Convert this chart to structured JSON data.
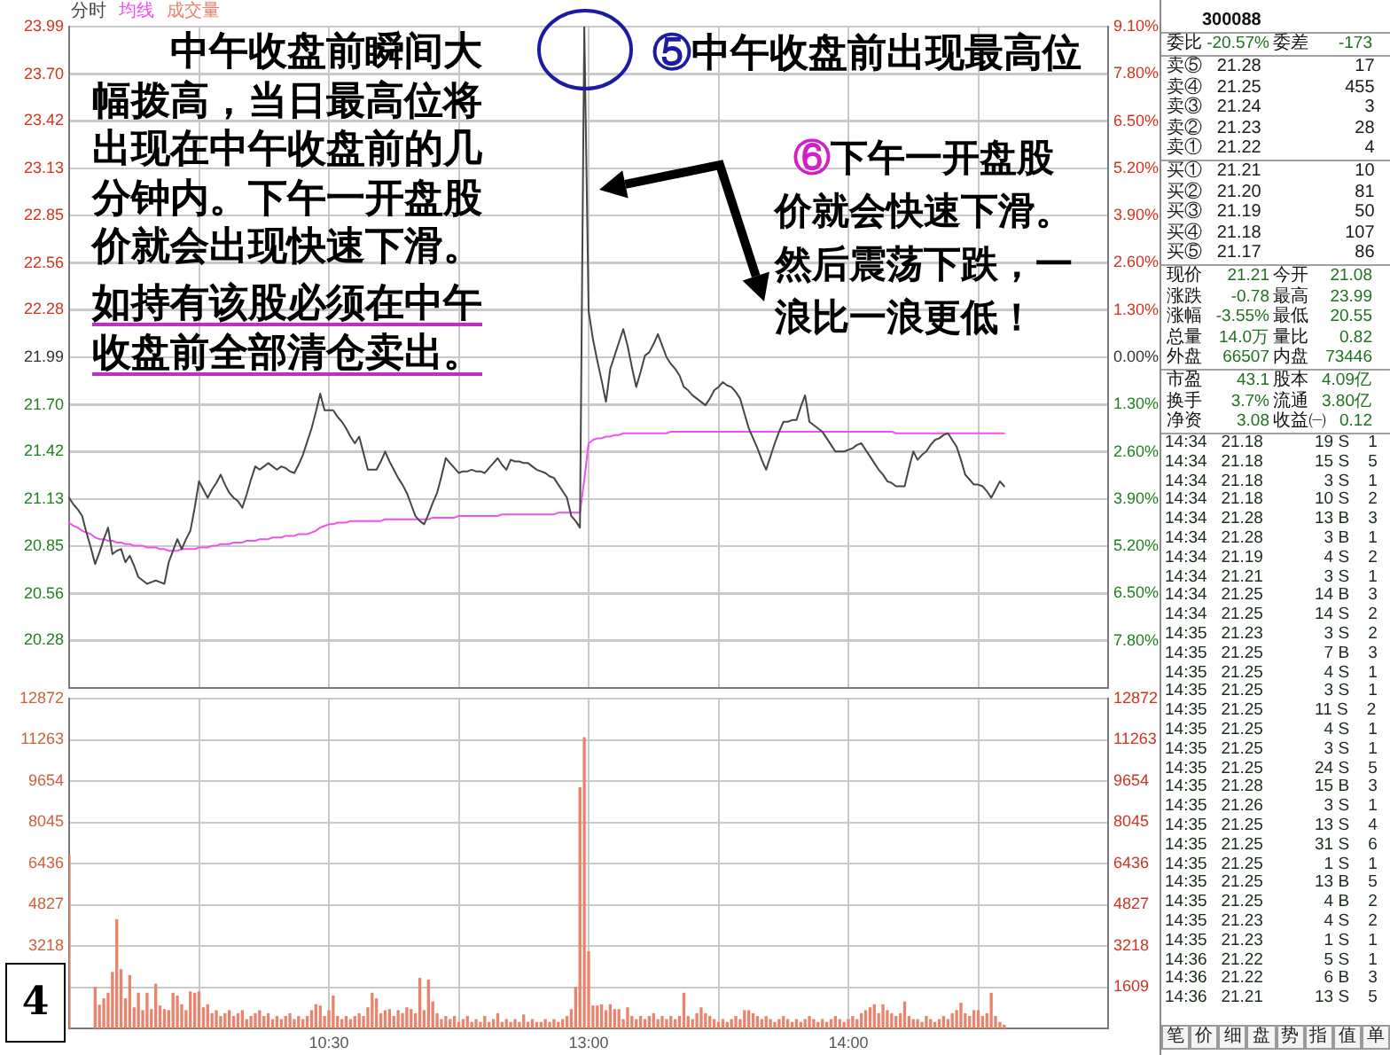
{
  "chart_data": [
    {
      "type": "line",
      "legend": "top left",
      "grid": true,
      "categories": [
        null,
        null,
        null,
        null,
        null,
        null,
        null,
        null,
        null,
        null,
        null,
        null,
        null,
        null,
        null,
        null,
        null,
        null,
        null,
        null,
        null,
        null,
        null,
        null,
        null,
        null,
        null,
        null,
        null,
        null,
        null,
        null,
        null,
        null,
        null,
        null,
        null,
        null,
        null,
        null,
        null,
        null,
        null,
        null,
        null,
        null,
        null,
        null,
        null,
        null,
        null,
        null,
        null,
        null,
        null,
        null,
        null,
        null,
        null,
        null,
        null,
        null,
        null,
        null,
        null,
        null,
        null,
        null,
        null,
        null,
        null,
        null,
        null,
        null,
        null,
        null,
        null,
        null,
        null,
        null,
        null,
        null,
        null,
        null,
        null,
        null,
        null,
        null,
        null,
        null,
        null,
        null,
        null,
        null,
        null,
        null,
        null,
        null,
        null,
        null,
        null,
        null,
        null,
        null,
        null,
        null,
        null,
        null,
        null,
        null,
        null,
        null,
        null,
        null,
        null,
        null,
        null,
        null,
        null,
        null,
        null,
        null,
        null,
        null,
        null,
        null,
        null,
        null,
        null,
        null,
        null,
        null,
        null,
        null,
        null,
        null,
        null,
        null,
        null,
        null,
        null,
        null,
        null,
        null,
        null,
        null,
        null,
        null,
        null,
        null,
        null,
        null,
        null,
        null,
        null,
        null,
        null,
        null,
        null,
        null,
        null,
        null,
        null,
        null,
        null,
        null,
        null,
        null,
        null,
        null,
        null,
        null,
        null,
        null,
        null,
        null,
        null,
        null,
        null,
        null,
        null,
        null,
        null,
        null,
        null,
        null,
        null,
        null,
        null,
        null,
        null,
        null,
        null,
        null,
        null,
        null,
        null,
        null,
        null,
        null,
        null,
        null,
        null,
        null,
        null,
        null,
        null,
        null,
        null,
        null,
        null,
        null,
        null,
        null,
        null,
        null,
        null,
        null,
        null,
        null,
        null,
        null,
        null,
        null,
        null,
        null,
        null,
        null,
        null,
        null,
        null,
        null,
        null,
        null,
        null,
        null,
        null,
        null,
        null,
        null,
        null
      ],
      "ylim": [
        19.99,
        23.99
      ],
      "yticks": [
        20.28,
        20.56,
        20.85,
        21.13,
        21.42,
        {
          "value": 21.7,
          "label": "21.70"
        },
        21.99,
        22.28,
        22.56,
        22.85,
        23.13,
        23.42,
        {
          "value": 23.7,
          "label": "23.70"
        },
        23.99
      ],
      "y2lim": [
        -9.1,
        9.1
      ],
      "y2ticks": [
        {
          "value": -7.8,
          "label": "7.80%"
        },
        {
          "value": -6.5,
          "label": "6.50%"
        },
        {
          "value": -5.2,
          "label": "5.20%"
        },
        {
          "value": -3.9,
          "label": "3.90%"
        },
        {
          "value": -2.6,
          "label": "2.60%"
        },
        {
          "value": -1.3,
          "label": "1.30%"
        },
        {
          "value": 0,
          "label": "0.00%"
        },
        {
          "value": 1.3,
          "label": "1.30%"
        },
        {
          "value": 2.6,
          "label": "2.60%"
        },
        {
          "value": 3.9,
          "label": "3.90%"
        },
        {
          "value": 5.2,
          "label": "5.20%"
        },
        {
          "value": 6.5,
          "label": "6.50%"
        },
        {
          "value": 7.8,
          "label": "7.80%"
        },
        {
          "value": 9.1,
          "label": "9.10%"
        }
      ],
      "series": [
        {
          "name": "分时",
          "color": "#464646",
          "values": [
            21.14,
            21.1,
            21.07,
            21.03,
            20.93,
            20.84,
            20.74,
            20.81,
            20.89,
            20.96,
            20.8,
            20.82,
            20.83,
            20.75,
            20.79,
            20.73,
            20.66,
            20.64,
            20.62,
            20.63,
            20.64,
            20.63,
            20.62,
            20.75,
            20.82,
            20.89,
            20.83,
            20.89,
            20.94,
            21.08,
            21.24,
            21.19,
            21.14,
            21.19,
            21.23,
            21.28,
            21.22,
            21.17,
            21.14,
            21.12,
            21.08,
            21.16,
            21.25,
            21.33,
            21.31,
            21.33,
            21.35,
            21.33,
            21.31,
            21.33,
            21.32,
            21.3,
            21.29,
            21.34,
            21.4,
            21.48,
            21.56,
            21.66,
            21.77,
            21.67,
            21.67,
            21.67,
            21.63,
            21.6,
            21.56,
            21.51,
            21.47,
            21.51,
            21.41,
            21.31,
            21.31,
            21.31,
            21.36,
            21.42,
            21.36,
            21.31,
            21.26,
            21.22,
            21.17,
            21.1,
            21.03,
            21.0,
            20.98,
            21.04,
            21.11,
            21.17,
            21.27,
            21.38,
            21.35,
            21.32,
            21.29,
            21.3,
            21.3,
            21.31,
            21.3,
            21.3,
            21.29,
            21.32,
            21.35,
            21.38,
            21.34,
            21.31,
            21.37,
            21.36,
            21.36,
            21.35,
            21.35,
            21.33,
            21.31,
            21.3,
            21.29,
            21.27,
            21.26,
            21.22,
            21.18,
            21.14,
            21.03,
            21.0,
            20.96,
            23.99,
            22.27,
            22.1,
            21.97,
            21.85,
            21.72,
            21.92,
            22.0,
            22.08,
            22.16,
            22.06,
            21.93,
            21.81,
            21.9,
            22.0,
            22.02,
            22.07,
            22.13,
            22.06,
            21.99,
            21.95,
            21.92,
            21.88,
            21.81,
            21.79,
            21.76,
            21.74,
            21.72,
            21.7,
            21.74,
            21.79,
            21.81,
            21.84,
            21.82,
            21.81,
            21.78,
            21.74,
            21.65,
            21.56,
            21.5,
            21.44,
            21.37,
            21.31,
            21.39,
            21.47,
            21.54,
            21.6,
            21.6,
            21.61,
            21.61,
            21.69,
            21.76,
            21.6,
            21.58,
            21.56,
            21.54,
            21.5,
            21.46,
            21.42,
            21.42,
            21.42,
            21.43,
            21.44,
            21.46,
            21.47,
            21.43,
            21.39,
            21.35,
            21.31,
            21.28,
            21.24,
            21.23,
            21.21,
            21.21,
            21.21,
            21.32,
            21.42,
            21.37,
            21.4,
            21.42,
            21.46,
            21.49,
            21.5,
            21.52,
            21.53,
            21.49,
            21.45,
            21.37,
            21.28,
            21.25,
            21.22,
            21.22,
            21.21,
            21.18,
            21.14,
            21.19,
            21.24,
            21.21,
            null,
            null,
            null,
            null,
            null,
            null,
            null,
            null,
            null,
            null,
            null,
            null,
            null,
            null,
            null,
            null,
            null,
            null,
            null,
            null,
            null,
            null,
            null,
            null
          ]
        },
        {
          "name": "均线",
          "color": "#f050f0",
          "values": [
            20.99,
            20.97,
            20.96,
            20.94,
            20.93,
            20.92,
            20.9,
            20.89,
            20.89,
            20.88,
            20.88,
            20.87,
            20.87,
            20.86,
            20.86,
            20.85,
            20.85,
            20.85,
            20.84,
            20.84,
            20.84,
            20.83,
            20.83,
            20.82,
            20.82,
            20.82,
            20.83,
            20.83,
            20.83,
            20.83,
            20.84,
            20.84,
            20.84,
            20.85,
            20.85,
            20.86,
            20.86,
            20.86,
            20.87,
            20.87,
            20.87,
            20.88,
            20.88,
            20.88,
            20.89,
            20.89,
            20.89,
            20.9,
            20.9,
            20.9,
            20.91,
            20.91,
            20.91,
            20.92,
            20.92,
            20.92,
            20.93,
            20.94,
            20.96,
            20.97,
            20.98,
            20.98,
            20.99,
            20.99,
            20.99,
            21.0,
            21.0,
            21.0,
            21.0,
            21.0,
            21.0,
            21.0,
            21.0,
            21.01,
            21.01,
            21.01,
            21.01,
            21.01,
            21.01,
            21.01,
            21.01,
            21.01,
            21.01,
            21.01,
            21.02,
            21.02,
            21.02,
            21.02,
            21.02,
            21.02,
            21.03,
            21.03,
            21.03,
            21.03,
            21.03,
            21.03,
            21.03,
            21.03,
            21.03,
            21.03,
            21.04,
            21.04,
            21.04,
            21.04,
            21.04,
            21.04,
            21.04,
            21.04,
            21.04,
            21.04,
            21.04,
            21.04,
            21.04,
            21.05,
            21.05,
            21.05,
            21.05,
            21.05,
            21.05,
            21.25,
            21.47,
            21.49,
            21.5,
            21.5,
            21.51,
            21.51,
            21.52,
            21.52,
            21.53,
            21.53,
            21.53,
            21.53,
            21.53,
            21.53,
            21.53,
            21.53,
            21.53,
            21.53,
            21.53,
            21.54,
            21.54,
            21.54,
            21.54,
            21.54,
            21.54,
            21.54,
            21.54,
            21.54,
            21.54,
            21.54,
            21.54,
            21.54,
            21.54,
            21.54,
            21.54,
            21.54,
            21.54,
            21.54,
            21.54,
            21.54,
            21.54,
            21.54,
            21.54,
            21.54,
            21.54,
            21.54,
            21.54,
            21.54,
            21.54,
            21.54,
            21.54,
            21.54,
            21.54,
            21.54,
            21.54,
            21.54,
            21.54,
            21.54,
            21.54,
            21.54,
            21.54,
            21.54,
            21.54,
            21.54,
            21.54,
            21.54,
            21.54,
            21.54,
            21.54,
            21.54,
            21.54,
            21.53,
            21.53,
            21.53,
            21.53,
            21.53,
            21.53,
            21.53,
            21.53,
            21.53,
            21.53,
            21.53,
            21.53,
            21.53,
            21.53,
            21.53,
            21.53,
            21.53,
            21.53,
            21.53,
            21.53,
            21.53,
            21.53,
            21.53,
            21.53,
            21.53,
            21.53,
            null,
            null,
            null,
            null,
            null,
            null,
            null,
            null,
            null,
            null,
            null,
            null,
            null,
            null,
            null,
            null,
            null,
            null,
            null,
            null,
            null,
            null,
            null,
            null
          ]
        }
      ],
      "annotations": [
        "中午收盘前瞬间大幅拨高，当日最高位将出现在中午收盘前的几分钟内。下午一开盘股价就会出现快速下滑。",
        "如持有该股必须在中午收盘前全部清仓卖出。",
        "⑤中午收盘前出现最高位",
        "⑥下午一开盘股价就会快速下滑。然后震荡下跌，一浪比一浪更低！"
      ]
    },
    {
      "type": "bar",
      "legend": "top left",
      "grid": true,
      "categories": [
        null,
        null,
        null,
        null,
        null,
        null,
        null,
        null,
        null,
        null,
        null,
        null,
        null,
        null,
        null,
        null,
        null,
        null,
        null,
        null,
        null,
        null,
        null,
        null,
        null,
        null,
        null,
        null,
        null,
        null,
        null,
        null,
        null,
        null,
        null,
        null,
        null,
        null,
        null,
        null,
        null,
        null,
        null,
        null,
        null,
        null,
        null,
        null,
        null,
        null,
        null,
        null,
        null,
        null,
        null,
        null,
        null,
        null,
        null,
        null,
        "10:30",
        null,
        null,
        null,
        null,
        null,
        null,
        null,
        null,
        null,
        null,
        null,
        null,
        null,
        null,
        null,
        null,
        null,
        null,
        null,
        null,
        null,
        null,
        null,
        null,
        null,
        null,
        null,
        null,
        null,
        null,
        null,
        null,
        null,
        null,
        null,
        null,
        null,
        null,
        null,
        null,
        null,
        null,
        null,
        null,
        null,
        null,
        null,
        null,
        null,
        null,
        null,
        null,
        null,
        null,
        null,
        null,
        null,
        null,
        null,
        "13:00",
        null,
        null,
        null,
        null,
        null,
        null,
        null,
        null,
        null,
        null,
        null,
        null,
        null,
        null,
        null,
        null,
        null,
        null,
        null,
        null,
        null,
        null,
        null,
        null,
        null,
        null,
        null,
        null,
        null,
        null,
        null,
        null,
        null,
        null,
        null,
        null,
        null,
        null,
        null,
        null,
        null,
        null,
        null,
        null,
        null,
        null,
        null,
        null,
        null,
        null,
        null,
        null,
        null,
        null,
        null,
        null,
        null,
        null,
        null,
        "14:00",
        null,
        null,
        null,
        null,
        null,
        null,
        null,
        null,
        null,
        null,
        null,
        null,
        null,
        null,
        null,
        null,
        null,
        null,
        null,
        null,
        null,
        null,
        null,
        null,
        null,
        null,
        null,
        null,
        null,
        null,
        null,
        null,
        null,
        null,
        null,
        null,
        null,
        null,
        null,
        null,
        null,
        null,
        null,
        null,
        null,
        null,
        null,
        null,
        null,
        null,
        null,
        null,
        null,
        null,
        null,
        null,
        null,
        null,
        null,
        null
      ],
      "ylim": [
        0,
        12872
      ],
      "yticks": [
        3218,
        4827,
        6436,
        8045,
        9654,
        11263,
        12872
      ],
      "y2lim": [
        0,
        12872
      ],
      "y2ticks": [
        1609,
        3218,
        4827,
        6436,
        8045,
        9654,
        11263,
        12872
      ],
      "series": [
        {
          "name": "成交量",
          "color": "#e8846c",
          "values": [
            6750,
            null,
            null,
            null,
            null,
            null,
            1600,
            900,
            1150,
            1370,
            2180,
            4240,
            2290,
            1150,
            2060,
            800,
            1370,
            690,
            1370,
            730,
            1720,
            870,
            730,
            690,
            1370,
            1260,
            920,
            690,
            1420,
            1370,
            1420,
            800,
            920,
            570,
            690,
            460,
            570,
            690,
            460,
            570,
            690,
            340,
            460,
            570,
            690,
            460,
            570,
            340,
            460,
            340,
            460,
            570,
            340,
            460,
            340,
            460,
            690,
            920,
            870,
            460,
            690,
            1260,
            460,
            340,
            460,
            340,
            460,
            570,
            460,
            800,
            1370,
            1150,
            570,
            690,
            730,
            460,
            690,
            570,
            800,
            730,
            570,
            1950,
            690,
            1880,
            1030,
            570,
            340,
            460,
            340,
            460,
            230,
            340,
            460,
            230,
            340,
            230,
            460,
            230,
            340,
            570,
            230,
            340,
            230,
            340,
            230,
            520,
            230,
            340,
            230,
            230,
            340,
            230,
            340,
            230,
            340,
            460,
            730,
            1600,
            9390,
            11340,
            2980,
            870,
            870,
            920,
            690,
            920,
            730,
            730,
            340,
            800,
            460,
            340,
            460,
            340,
            460,
            570,
            340,
            460,
            340,
            460,
            340,
            460,
            1370,
            460,
            340,
            570,
            800,
            570,
            460,
            340,
            230,
            340,
            230,
            340,
            460,
            340,
            690,
            690,
            570,
            460,
            340,
            460,
            340,
            230,
            340,
            460,
            340,
            230,
            340,
            230,
            340,
            460,
            340,
            230,
            340,
            230,
            340,
            460,
            340,
            230,
            340,
            460,
            340,
            570,
            690,
            800,
            920,
            570,
            920,
            690,
            570,
            460,
            570,
            1030,
            460,
            340,
            340,
            230,
            460,
            340,
            230,
            340,
            460,
            340,
            570,
            690,
            980,
            570,
            460,
            690,
            690,
            460,
            570,
            1370,
            460,
            230,
            120,
            null,
            null,
            null,
            null,
            null,
            null,
            null,
            null,
            null,
            null,
            null,
            null,
            null,
            null,
            null,
            null,
            null,
            null,
            null,
            null,
            null,
            null,
            null,
            null
          ]
        }
      ],
      "annotations": [
        "4"
      ]
    },
    {
      "type": "other",
      "annotations": [
        "300088",
        "委比 -20.57% 委差 -173",
        "卖⑤ 21.28 17",
        "卖④ 21.25 455",
        "卖③ 21.24 3",
        "卖② 21.23 28",
        "卖① 21.22 4",
        "买① 21.21 10",
        "买② 21.20 81",
        "买③ 21.19 50",
        "买④ 21.18 107",
        "买⑤ 21.17 86",
        "现价 21.21 今开 21.08",
        "涨跌 -0.78 最高 23.99",
        "涨幅 -3.55% 最低 20.55",
        "总量 14.0万 量比 0.82",
        "外盘 66507 内盘 73446",
        "市盈 43.1 股本 4.09亿",
        "换手 3.7% 流通 3.80亿",
        "净资 3.08 收益㈠ 0.12",
        "14:34 21.18 19 S 1",
        "14:34 21.18 15 S 5",
        "14:34 21.18 3 S 1",
        "14:34 21.18 10 S 2",
        "14:34 21.28 13 B 3",
        "14:34 21.28 3 B 1",
        "14:34 21.19 4 S 2",
        "14:34 21.21 3 S 1",
        "14:34 21.25 14 B 3",
        "14:34 21.25 14 S 2",
        "14:35 21.23 3 S 2",
        "14:35 21.25 7 B 3",
        "14:35 21.25 4 S 1",
        "14:35 21.25 3 S 1",
        "14:35 21.25 11 S 2",
        "14:35 21.25 4 S 1",
        "14:35 21.25 3 S 1",
        "14:35 21.25 24 S 5",
        "14:35 21.28 15 B 3",
        "14:35 21.26 3 S 1",
        "14:35 21.25 13 S 4",
        "14:35 21.25 31 S 6",
        "14:35 21.25 1 S 1",
        "14:35 21.25 13 B 5",
        "14:35 21.25 4 B 2",
        "14:35 21.23 4 S 2",
        "14:35 21.23 1 S 1",
        "14:36 21.22 5 S 1",
        "14:36 21.22 6 B 3",
        "14:36 21.21 13 S 5",
        "笔 价 细 盘 势 指 值 单"
      ]
    }
  ]
}
